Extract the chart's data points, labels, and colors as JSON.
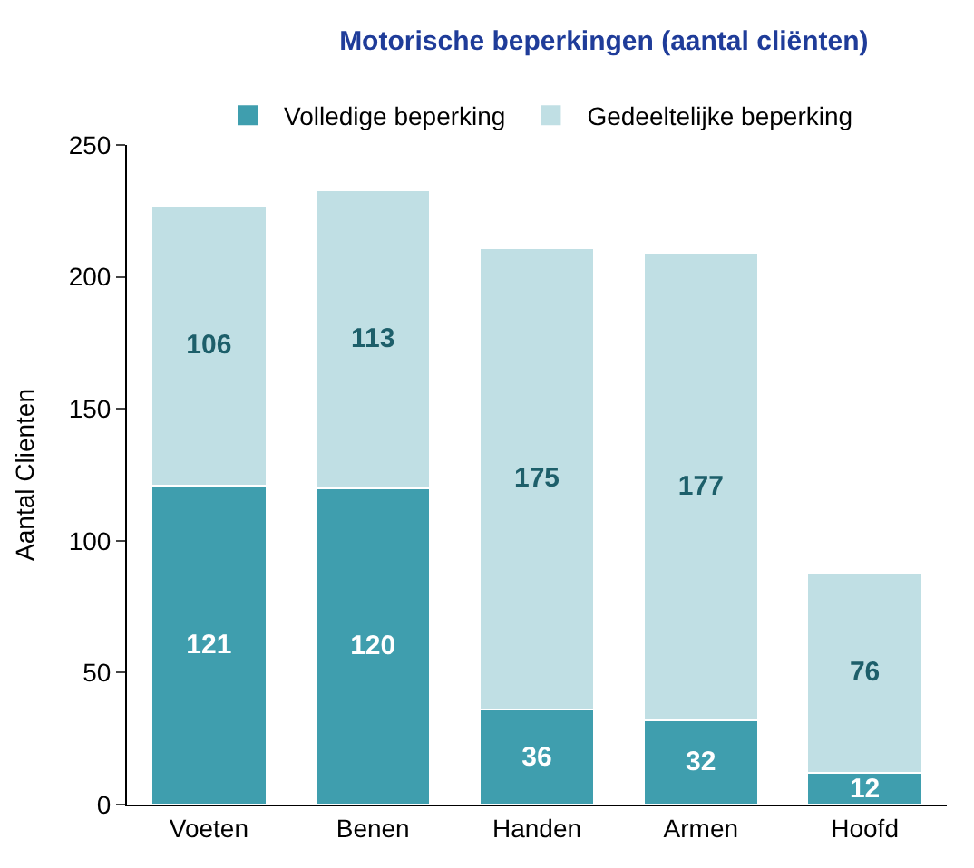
{
  "chart_data": {
    "type": "bar",
    "title": "Motorische beperkingen (aantal cliënten)",
    "ylabel": "Aantal Clienten",
    "categories": [
      "Voeten",
      "Benen",
      "Handen",
      "Armen",
      "Hoofd"
    ],
    "series": [
      {
        "name": "Volledige beperking",
        "color": "#3f9eae",
        "values": [
          121,
          120,
          36,
          32,
          12
        ]
      },
      {
        "name": "Gedeeltelijke beperking",
        "color": "#c0dfe4",
        "values": [
          106,
          113,
          175,
          177,
          76
        ]
      }
    ],
    "stacked": true,
    "data_labels": true,
    "ylim": [
      0,
      250
    ],
    "yticks": [
      0,
      50,
      100,
      150,
      200,
      250
    ],
    "legend": "top"
  }
}
